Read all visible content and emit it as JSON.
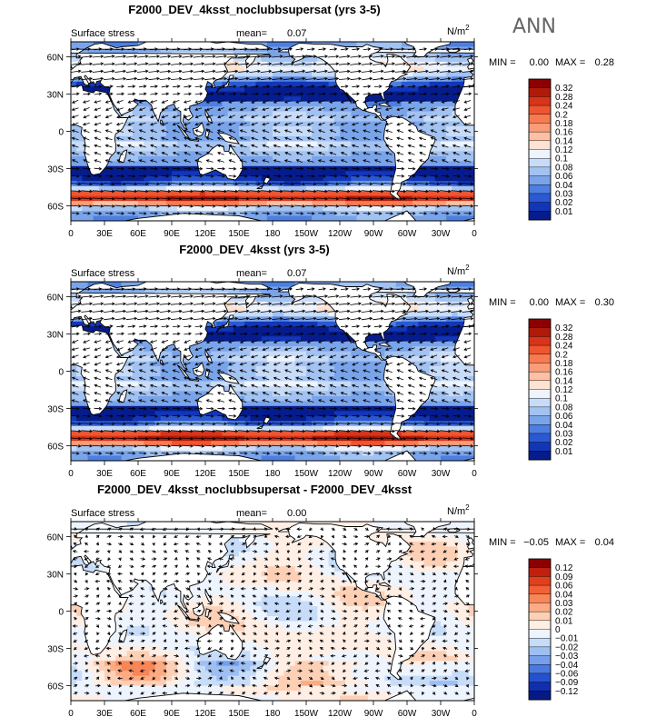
{
  "season": "ANN",
  "units_main": "N/m",
  "units_sup": "2",
  "lon_ticks": [
    "0",
    "30E",
    "60E",
    "90E",
    "120E",
    "150E",
    "180",
    "150W",
    "120W",
    "90W",
    "60W",
    "30W",
    "0"
  ],
  "lat_ticks": [
    "60N",
    "30N",
    "0",
    "30S",
    "60S"
  ],
  "panels": [
    {
      "title": "F2000_DEV_4ksst_noclubbsupersat (yrs 3-5)",
      "left_label": "Surface stress",
      "mean_label": "mean=",
      "mean_value": "0.07",
      "min_label": "MIN =",
      "min_value": "0.00",
      "max_label": "MAX =",
      "max_value": "0.28",
      "colorbar": [
        "0.32",
        "0.28",
        "0.24",
        "0.2",
        "0.18",
        "0.16",
        "0.14",
        "0.12",
        "0.1",
        "0.08",
        "0.06",
        "0.04",
        "0.03",
        "0.02",
        "0.01"
      ],
      "colors": [
        "#8b0000",
        "#b01a0a",
        "#d8341a",
        "#ee5530",
        "#f77a50",
        "#fb9c78",
        "#fdc0a4",
        "#fee2d2",
        "#eef3fc",
        "#c8dcf8",
        "#a2c2f2",
        "#7aa4ea",
        "#4d7fe0",
        "#2b59d2",
        "#1236b8",
        "#061c8c"
      ],
      "field": "abs"
    },
    {
      "title": "F2000_DEV_4ksst (yrs 3-5)",
      "left_label": "Surface stress",
      "mean_label": "mean=",
      "mean_value": "0.07",
      "min_label": "MIN =",
      "min_value": "0.00",
      "max_label": "MAX =",
      "max_value": "0.30",
      "colorbar": [
        "0.32",
        "0.28",
        "0.24",
        "0.2",
        "0.18",
        "0.16",
        "0.14",
        "0.12",
        "0.1",
        "0.08",
        "0.06",
        "0.04",
        "0.03",
        "0.02",
        "0.01"
      ],
      "colors": [
        "#8b0000",
        "#b01a0a",
        "#d8341a",
        "#ee5530",
        "#f77a50",
        "#fb9c78",
        "#fdc0a4",
        "#fee2d2",
        "#eef3fc",
        "#c8dcf8",
        "#a2c2f2",
        "#7aa4ea",
        "#4d7fe0",
        "#2b59d2",
        "#1236b8",
        "#061c8c"
      ],
      "field": "abs"
    },
    {
      "title": "F2000_DEV_4ksst_noclubbsupersat - F2000_DEV_4ksst",
      "left_label": "Surface stress",
      "mean_label": "mean=",
      "mean_value": "0.00",
      "min_label": "MIN =",
      "min_value": "−0.05",
      "max_label": "MAX =",
      "max_value": "0.04",
      "colorbar": [
        "0.12",
        "0.09",
        "0.06",
        "0.04",
        "0.03",
        "0.02",
        "0.01",
        "0",
        "−0.01",
        "−0.02",
        "−0.03",
        "−0.04",
        "−0.06",
        "−0.09",
        "−0.12"
      ],
      "colors": [
        "#8b0000",
        "#c0200e",
        "#e0401e",
        "#f26038",
        "#f88658",
        "#fcab84",
        "#fdd0b6",
        "#feeee4",
        "#edf4fe",
        "#c6dcf8",
        "#9ebff2",
        "#769fea",
        "#4a7adf",
        "#2552cc",
        "#0f2fae",
        "#061a86"
      ],
      "field": "diff"
    }
  ],
  "chart_data": {
    "type": "heatmap",
    "variable": "Surface stress",
    "units": "N/m2",
    "season": "ANN",
    "x_ticks": [
      "0",
      "30E",
      "60E",
      "90E",
      "120E",
      "150E",
      "180",
      "150W",
      "120W",
      "90W",
      "60W",
      "30W",
      "0"
    ],
    "y_ticks": [
      "60N",
      "30N",
      "0",
      "30S",
      "60S"
    ],
    "panels": [
      {
        "title": "F2000_DEV_4ksst_noclubbsupersat (yrs 3-5)",
        "mean": 0.07,
        "min": 0.0,
        "max": 0.28,
        "levels": [
          0.01,
          0.02,
          0.03,
          0.04,
          0.06,
          0.08,
          0.1,
          0.12,
          0.14,
          0.16,
          0.18,
          0.2,
          0.24,
          0.28,
          0.32
        ]
      },
      {
        "title": "F2000_DEV_4ksst (yrs 3-5)",
        "mean": 0.07,
        "min": 0.0,
        "max": 0.3,
        "levels": [
          0.01,
          0.02,
          0.03,
          0.04,
          0.06,
          0.08,
          0.1,
          0.12,
          0.14,
          0.16,
          0.18,
          0.2,
          0.24,
          0.28,
          0.32
        ]
      },
      {
        "title": "F2000_DEV_4ksst_noclubbsupersat - F2000_DEV_4ksst",
        "mean": 0.0,
        "min": -0.05,
        "max": 0.04,
        "levels": [
          -0.12,
          -0.09,
          -0.06,
          -0.04,
          -0.03,
          -0.02,
          -0.01,
          0,
          0.01,
          0.02,
          0.03,
          0.04,
          0.06,
          0.09,
          0.12
        ]
      }
    ]
  }
}
